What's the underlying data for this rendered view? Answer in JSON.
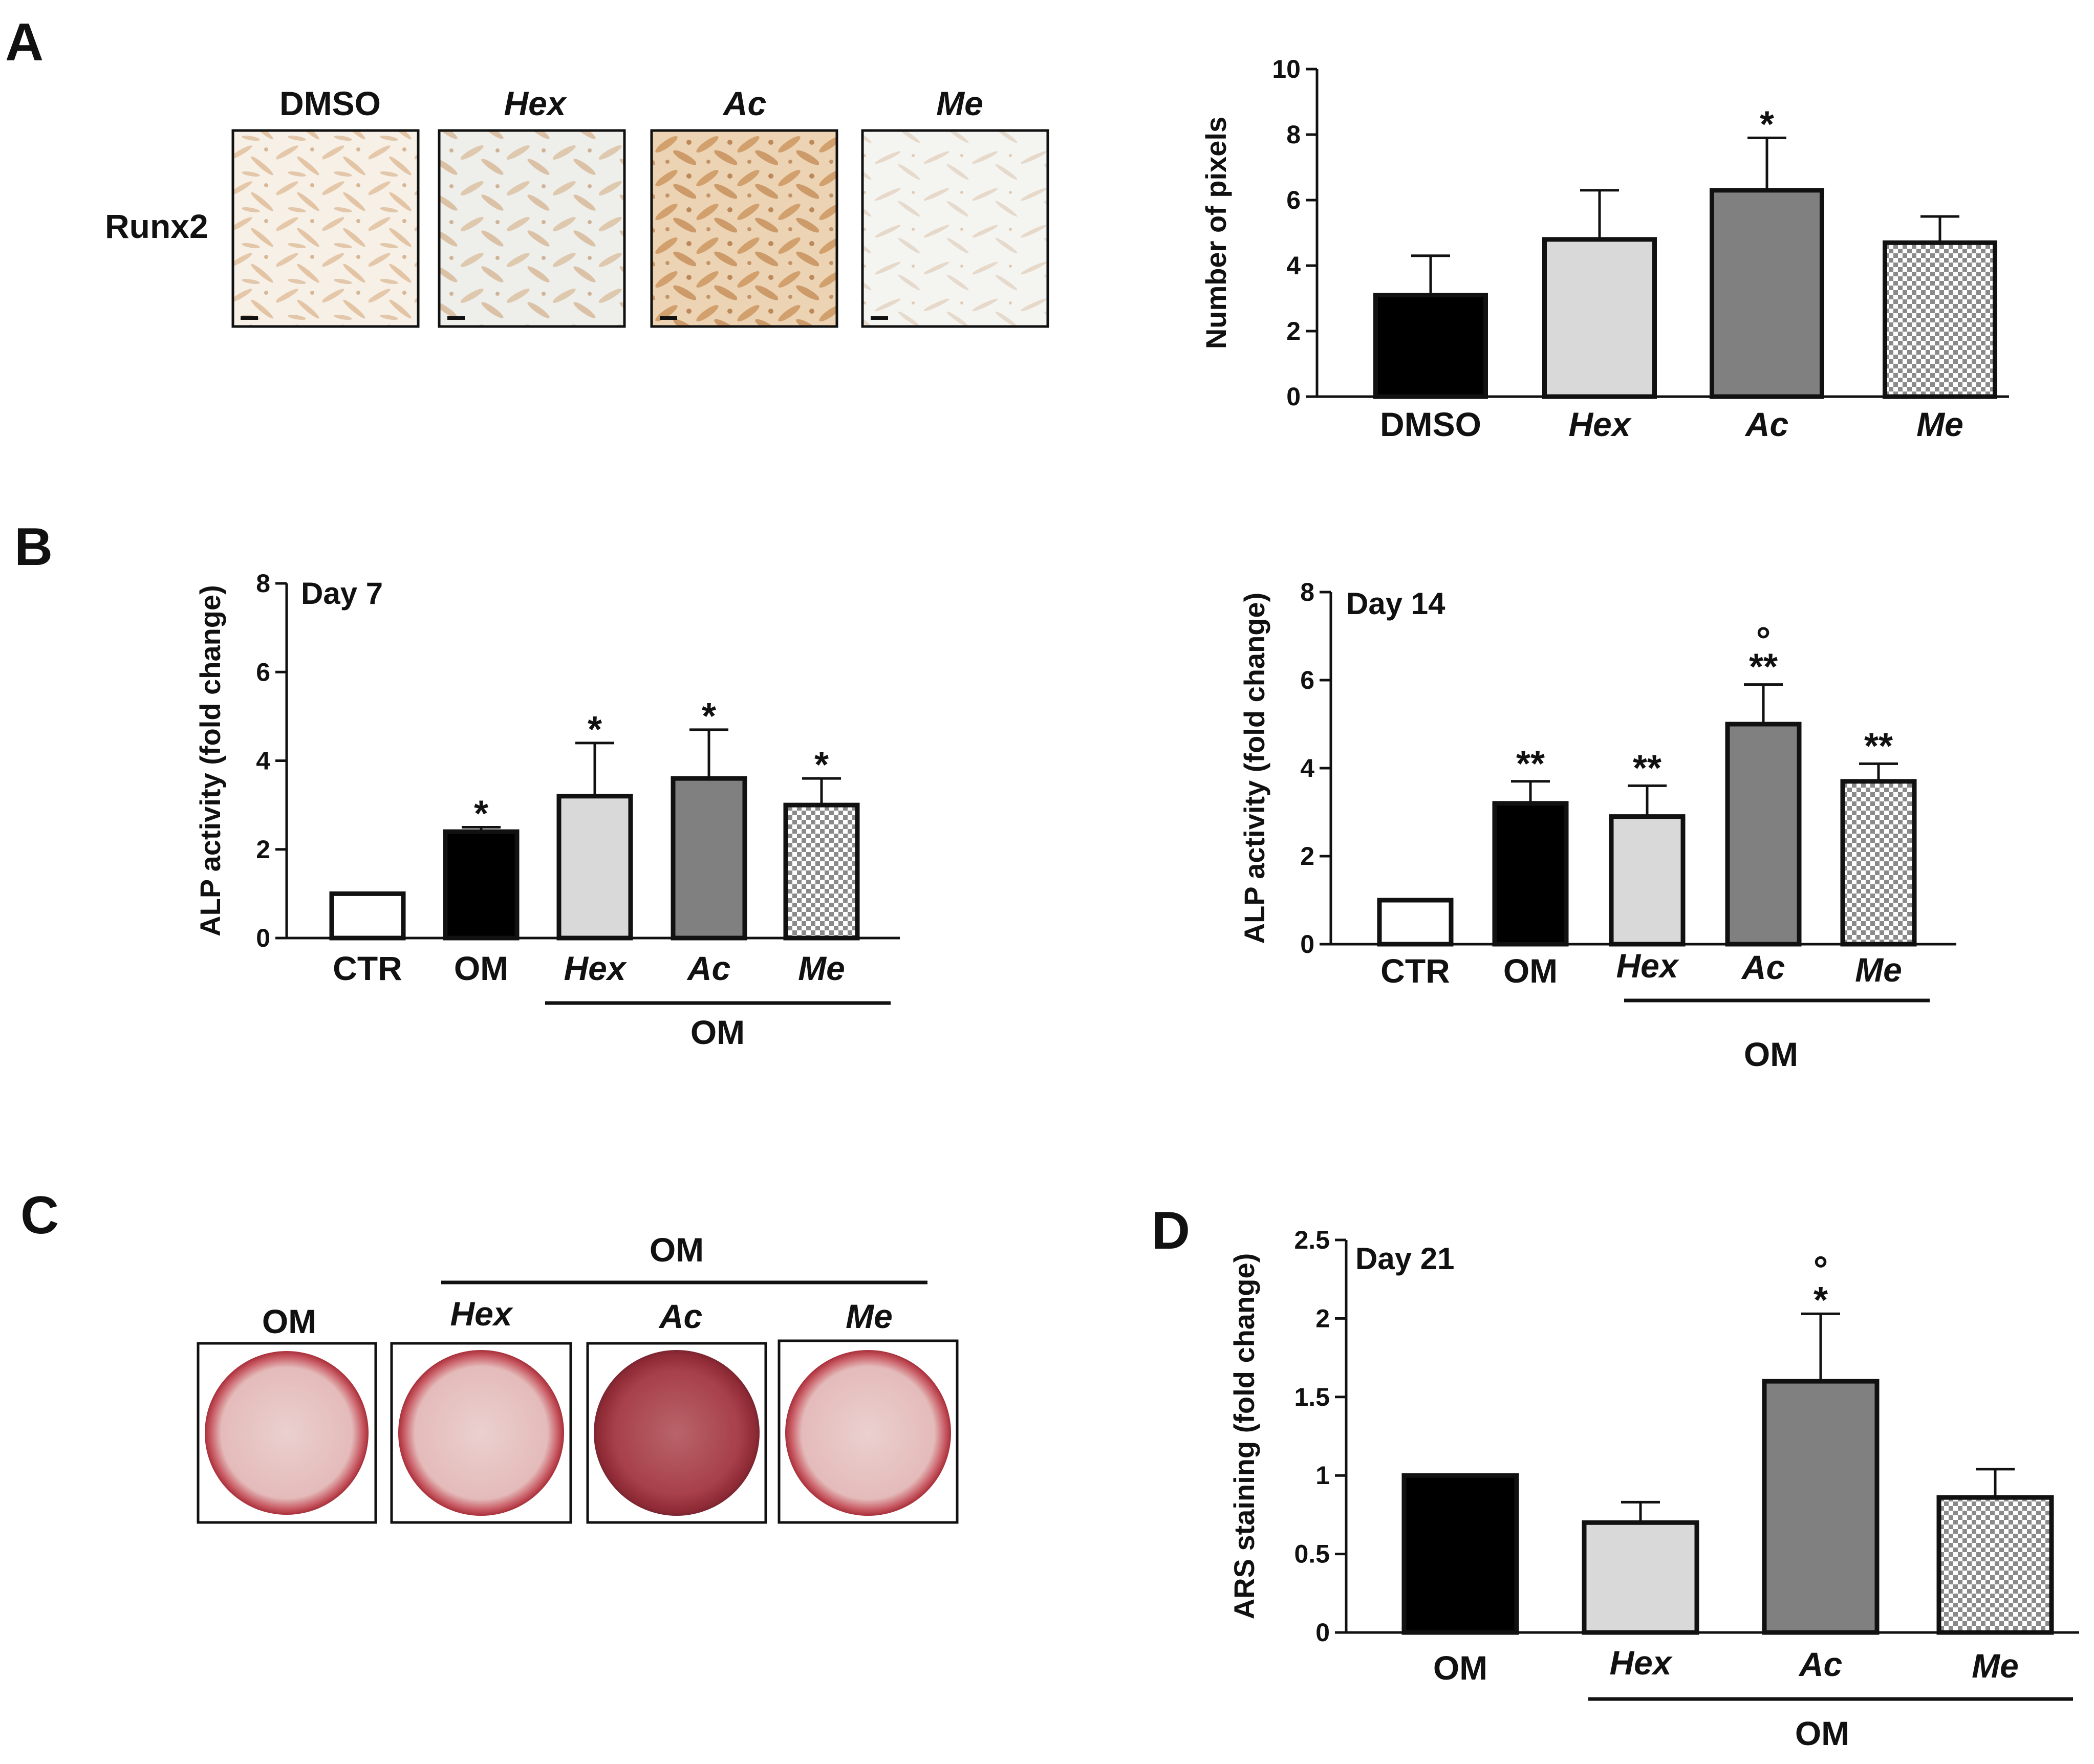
{
  "panels": {
    "a": "A",
    "b": "B",
    "c": "C",
    "d": "D"
  },
  "panel_a": {
    "row_label": "Runx2",
    "image_labels": [
      "DMSO",
      "Hex",
      "Ac",
      "Me"
    ]
  },
  "panel_c": {
    "group_label": "OM",
    "image_labels": [
      "OM",
      "Hex",
      "Ac",
      "Me"
    ]
  },
  "colors": {
    "black": "#000000",
    "light_gray": "#d9d9d9",
    "dark_gray": "#808080",
    "white": "#ffffff",
    "cell_bg": "#f6efe6",
    "cell_stain": "#c99463",
    "well_red": "#b8323c",
    "well_pink": "#e6c3c1"
  },
  "chart_data": [
    {
      "id": "A",
      "type": "bar",
      "categories": [
        "DMSO",
        "Hex",
        "Ac",
        "Me"
      ],
      "values": [
        3.1,
        4.8,
        6.3,
        4.7
      ],
      "errors": [
        1.2,
        1.5,
        1.6,
        0.8
      ],
      "fills": [
        "black",
        "lightgray",
        "darkgray",
        "checker"
      ],
      "significance": [
        "",
        "",
        "*",
        ""
      ],
      "title": "",
      "xlabel": "",
      "ylabel": "Number of pixels",
      "ylim": [
        0,
        10
      ],
      "yticks": [
        "0",
        "2",
        "4",
        "6",
        "8",
        "10"
      ]
    },
    {
      "id": "B1",
      "type": "bar",
      "categories": [
        "CTR",
        "OM",
        "Hex",
        "Ac",
        "Me"
      ],
      "values": [
        1.0,
        2.4,
        3.2,
        3.6,
        3.0
      ],
      "errors": [
        0.0,
        0.1,
        1.2,
        1.1,
        0.6
      ],
      "fills": [
        "white",
        "black",
        "lightgray",
        "darkgray",
        "checker"
      ],
      "significance": [
        "",
        "*",
        "*",
        "*",
        "*"
      ],
      "annotation": "Day 7",
      "group_label": "OM",
      "ylabel": "ALP activity (fold change)",
      "ylim": [
        0,
        8
      ],
      "yticks": [
        "0",
        "2",
        "4",
        "6",
        "8"
      ]
    },
    {
      "id": "B2",
      "type": "bar",
      "categories": [
        "CTR",
        "OM",
        "Hex",
        "Ac",
        "Me"
      ],
      "values": [
        1.0,
        3.2,
        2.9,
        5.0,
        3.7
      ],
      "errors": [
        0.0,
        0.5,
        0.7,
        0.9,
        0.4
      ],
      "fills": [
        "white",
        "black",
        "lightgray",
        "darkgray",
        "checker"
      ],
      "significance": [
        "",
        "**",
        "**",
        "**",
        "**"
      ],
      "circle_marks": [
        "",
        "",
        "",
        "°",
        ""
      ],
      "annotation": "Day 14",
      "group_label": "OM",
      "ylabel": "ALP activity (fold change)",
      "ylim": [
        0,
        8
      ],
      "yticks": [
        "0",
        "2",
        "4",
        "6",
        "8"
      ]
    },
    {
      "id": "D",
      "type": "bar",
      "categories": [
        "OM",
        "Hex",
        "Ac",
        "Me"
      ],
      "values": [
        1.0,
        0.7,
        1.6,
        0.86
      ],
      "errors": [
        0.0,
        0.13,
        0.43,
        0.18
      ],
      "fills": [
        "black",
        "lightgray",
        "darkgray",
        "checker"
      ],
      "significance": [
        "",
        "",
        "*",
        ""
      ],
      "circle_marks": [
        "",
        "",
        "°",
        ""
      ],
      "annotation": "Day 21",
      "group_label": "OM",
      "ylabel": "ARS staining (fold change)",
      "ylim": [
        0,
        2.5
      ],
      "yticks": [
        "0",
        "0.5",
        "1",
        "1.5",
        "2",
        "2.5"
      ]
    }
  ]
}
